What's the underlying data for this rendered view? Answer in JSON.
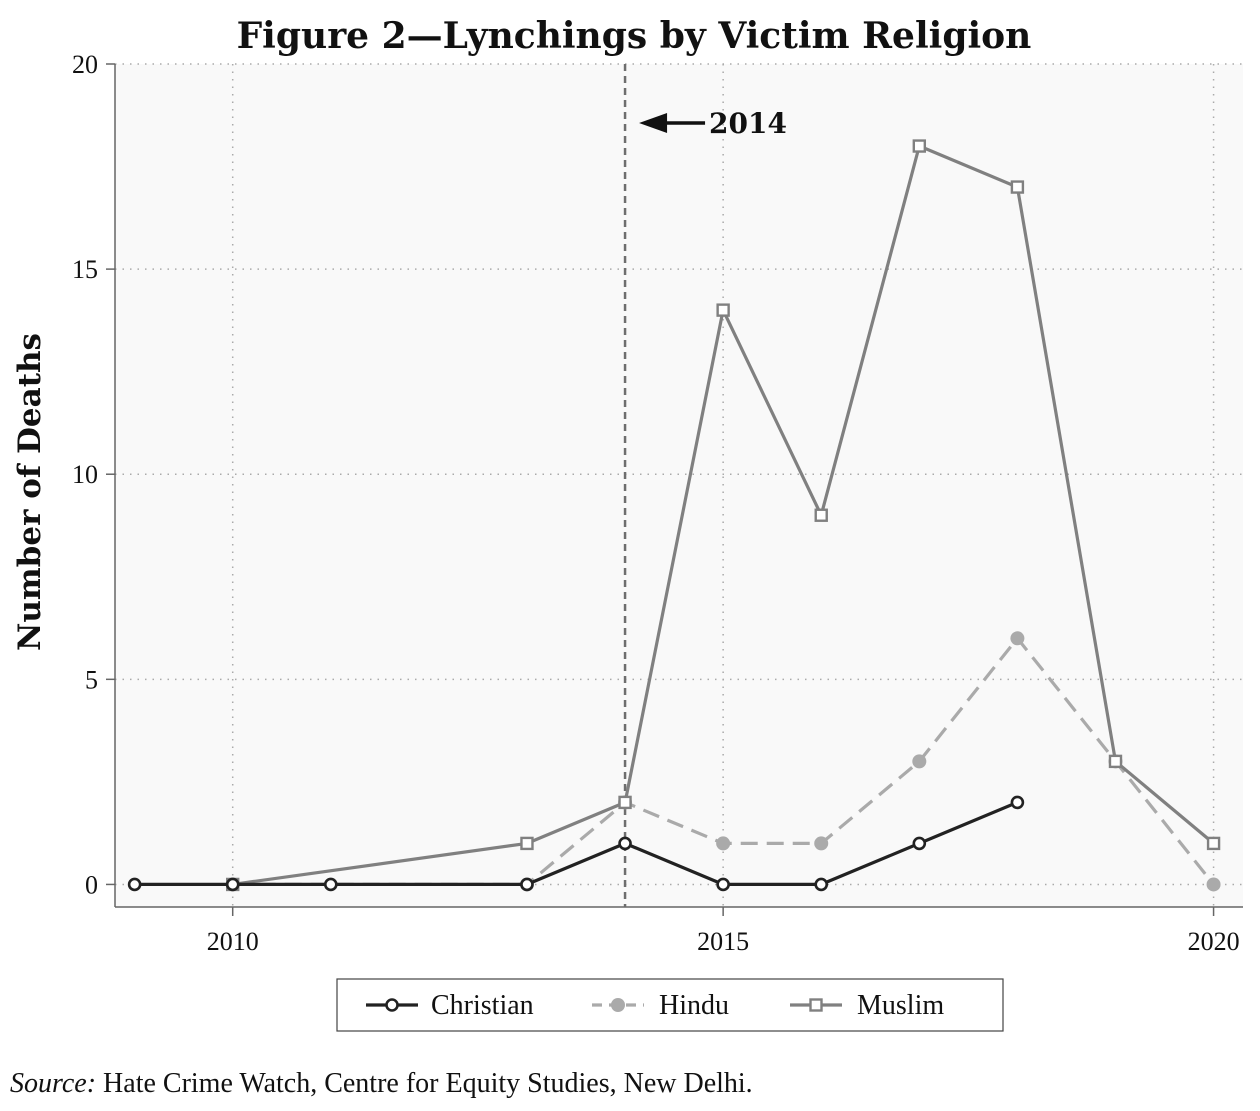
{
  "chart_data": {
    "type": "line",
    "title": "Figure 2—Lynchings by Victim Religion",
    "xlabel": "",
    "ylabel": "Number of Deaths",
    "xlim": [
      2008.8,
      2020.3
    ],
    "ylim": [
      -0.55,
      20
    ],
    "xticks": [
      2010,
      2015,
      2020
    ],
    "yticks": [
      0,
      5,
      10,
      15,
      20
    ],
    "grid": true,
    "legend": "bottom",
    "annotation": {
      "label": "2014",
      "x": 2014
    },
    "series": [
      {
        "name": "Christian",
        "color": "#222222",
        "marker": "circle-hollow",
        "dash": "solid",
        "x": [
          2009,
          2010,
          2011,
          2013,
          2014,
          2015,
          2016,
          2017,
          2018
        ],
        "values": [
          0,
          0,
          0,
          0,
          1,
          0,
          0,
          1,
          2
        ]
      },
      {
        "name": "Hindu",
        "color": "#aaaaaa",
        "marker": "circle-filled",
        "dash": "dashed",
        "x": [
          2010,
          2013,
          2014,
          2015,
          2016,
          2017,
          2018,
          2019,
          2020
        ],
        "values": [
          0,
          0,
          2,
          1,
          1,
          3,
          6,
          3,
          0
        ]
      },
      {
        "name": "Muslim",
        "color": "#808080",
        "marker": "square-hollow",
        "dash": "solid",
        "x": [
          2010,
          2013,
          2014,
          2015,
          2016,
          2017,
          2018,
          2019,
          2020
        ],
        "values": [
          0,
          1,
          2,
          14,
          9,
          18,
          17,
          3,
          1
        ]
      }
    ]
  },
  "source": {
    "prefix": "Source:",
    "text": " Hate Crime Watch, Centre for Equity Studies, New Delhi."
  }
}
